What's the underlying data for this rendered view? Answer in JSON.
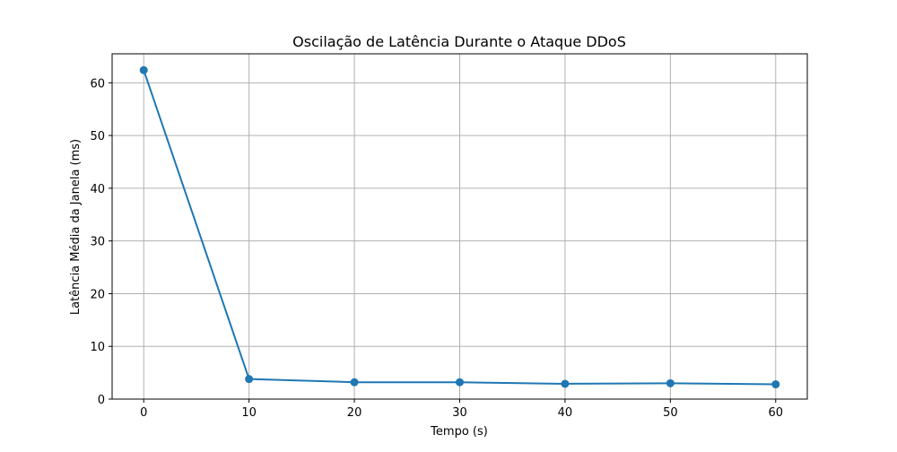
{
  "chart_data": {
    "type": "line",
    "title": "Oscilação de Latência Durante o Ataque DDoS",
    "xlabel": "Tempo (s)",
    "ylabel": "Latência Média da Janela (ms)",
    "x": [
      0,
      10,
      20,
      30,
      40,
      50,
      60
    ],
    "series": [
      {
        "values": [
          62.4,
          3.8,
          3.2,
          3.2,
          2.9,
          3.0,
          2.8
        ],
        "color": "#1f77b4",
        "marker": "circle"
      }
    ],
    "xlim": [
      -3,
      63
    ],
    "ylim": [
      0,
      65.5
    ],
    "xticks": [
      0,
      10,
      20,
      30,
      40,
      50,
      60
    ],
    "xtick_labels": [
      "0",
      "10",
      "20",
      "30",
      "40",
      "50",
      "60"
    ],
    "yticks": [
      0,
      10,
      20,
      30,
      40,
      50,
      60
    ],
    "ytick_labels": [
      "0",
      "10",
      "20",
      "30",
      "40",
      "50",
      "60"
    ],
    "grid": true,
    "legend": false
  }
}
